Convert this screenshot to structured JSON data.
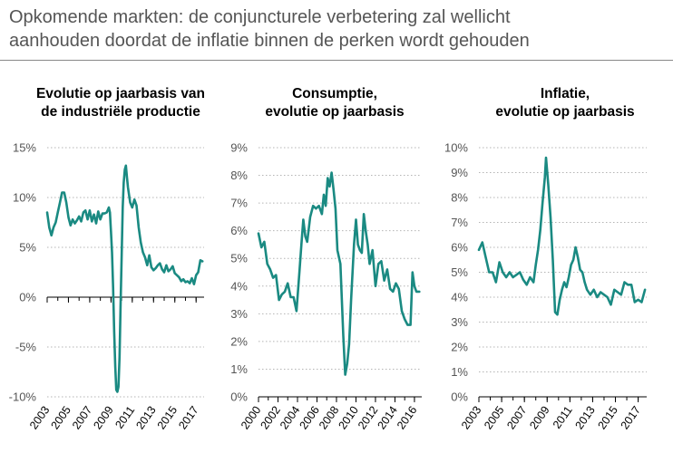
{
  "title_lines": [
    "Opkomende markten: de conjuncturele verbetering zal wellicht",
    "aanhouden doordat de inflatie binnen de perken wordt gehouden"
  ],
  "colors": {
    "line": "#1a8a82",
    "grid": "#b4b4b4",
    "zero": "#000000",
    "rule": "#888888"
  },
  "chart_data": [
    {
      "type": "line",
      "title": "Evolutie op jaarbasis van de industriële productie",
      "title_lines": [
        "Evolutie op jaarbasis van",
        "de industriële productie"
      ],
      "y_ticks": [
        "15%",
        "10%",
        "5%",
        "0%",
        "-5%",
        "-10%"
      ],
      "ylim": [
        -10,
        15
      ],
      "x_ticks": [
        "2003",
        "2005",
        "2007",
        "2009",
        "2011",
        "2013",
        "2015",
        "2017"
      ],
      "xlim": [
        2003,
        2017.75
      ],
      "grid": true,
      "zero_line": true,
      "series": [
        {
          "x": [
            2003.0,
            2003.2,
            2003.4,
            2003.6,
            2003.8,
            2004.0,
            2004.2,
            2004.4,
            2004.6,
            2004.8,
            2005.0,
            2005.2,
            2005.4,
            2005.6,
            2005.8,
            2006.0,
            2006.2,
            2006.4,
            2006.6,
            2006.8,
            2007.0,
            2007.2,
            2007.4,
            2007.6,
            2007.8,
            2008.0,
            2008.2,
            2008.4,
            2008.6,
            2008.8,
            2008.9,
            2009.0,
            2009.1,
            2009.2,
            2009.3,
            2009.4,
            2009.5,
            2009.6,
            2009.7,
            2009.8,
            2009.9,
            2010.0,
            2010.1,
            2010.2,
            2010.3,
            2010.4,
            2010.5,
            2010.6,
            2010.8,
            2011.0,
            2011.2,
            2011.4,
            2011.6,
            2011.8,
            2012.0,
            2012.2,
            2012.4,
            2012.6,
            2012.8,
            2013.0,
            2013.2,
            2013.4,
            2013.6,
            2013.8,
            2014.0,
            2014.2,
            2014.4,
            2014.6,
            2014.8,
            2015.0,
            2015.2,
            2015.4,
            2015.6,
            2015.8,
            2016.0,
            2016.2,
            2016.4,
            2016.6,
            2016.8,
            2017.0,
            2017.2,
            2017.4,
            2017.6
          ],
          "y": [
            8.5,
            7.0,
            6.2,
            7.0,
            7.5,
            8.5,
            9.5,
            10.5,
            10.5,
            9.5,
            8.0,
            7.2,
            7.8,
            7.4,
            7.7,
            8.1,
            7.6,
            8.5,
            8.7,
            7.8,
            8.7,
            7.6,
            8.3,
            7.4,
            8.6,
            7.8,
            8.4,
            8.4,
            8.5,
            9.0,
            8.5,
            6.5,
            4.5,
            1.0,
            -3.5,
            -7.0,
            -9.3,
            -9.5,
            -9.0,
            -6.0,
            -1.0,
            4.0,
            9.0,
            11.5,
            12.8,
            13.2,
            12.0,
            11.0,
            9.5,
            9.0,
            9.8,
            9.2,
            7.0,
            5.5,
            4.5,
            4.0,
            3.2,
            4.2,
            3.0,
            2.7,
            2.9,
            3.2,
            3.4,
            2.8,
            2.5,
            3.2,
            2.6,
            2.8,
            3.1,
            2.4,
            2.2,
            2.0,
            1.6,
            1.8,
            1.5,
            1.6,
            1.4,
            1.9,
            1.3,
            2.2,
            2.5,
            3.7,
            3.6
          ]
        }
      ]
    },
    {
      "type": "line",
      "title": "Consumptie, evolutie op jaarbasis",
      "title_lines": [
        "Consumptie,",
        "evolutie op jaarbasis"
      ],
      "y_ticks": [
        "9%",
        "8%",
        "7%",
        "6%",
        "5%",
        "4%",
        "3%",
        "2%",
        "1%",
        "0%"
      ],
      "ylim": [
        0,
        9
      ],
      "x_ticks": [
        "2000",
        "2002",
        "2004",
        "2006",
        "2008",
        "2010",
        "2012",
        "2014",
        "2016"
      ],
      "xlim": [
        2000,
        2016.75
      ],
      "grid": true,
      "zero_line": false,
      "series": [
        {
          "x": [
            2000.0,
            2000.3,
            2000.6,
            2000.9,
            2001.2,
            2001.5,
            2001.8,
            2002.1,
            2002.4,
            2002.7,
            2003.0,
            2003.3,
            2003.6,
            2003.9,
            2004.2,
            2004.4,
            2004.6,
            2004.8,
            2005.0,
            2005.3,
            2005.6,
            2005.9,
            2006.2,
            2006.5,
            2006.7,
            2006.9,
            2007.1,
            2007.3,
            2007.5,
            2007.7,
            2007.9,
            2008.1,
            2008.4,
            2008.7,
            2008.9,
            2009.1,
            2009.3,
            2009.5,
            2009.8,
            2010.0,
            2010.2,
            2010.4,
            2010.6,
            2010.8,
            2011.0,
            2011.2,
            2011.4,
            2011.7,
            2012.0,
            2012.3,
            2012.6,
            2012.9,
            2013.2,
            2013.5,
            2013.8,
            2014.1,
            2014.4,
            2014.7,
            2015.0,
            2015.3,
            2015.6,
            2015.8,
            2016.0,
            2016.2,
            2016.5
          ],
          "y": [
            5.9,
            5.4,
            5.6,
            4.8,
            4.6,
            4.3,
            4.4,
            3.5,
            3.7,
            3.8,
            4.1,
            3.6,
            3.6,
            3.1,
            4.5,
            5.5,
            6.4,
            5.8,
            5.6,
            6.5,
            6.9,
            6.8,
            6.9,
            6.6,
            7.3,
            6.9,
            7.9,
            7.6,
            8.1,
            7.5,
            6.8,
            5.3,
            4.8,
            2.2,
            0.8,
            1.2,
            1.9,
            3.5,
            5.5,
            6.4,
            5.5,
            5.3,
            5.2,
            6.6,
            6.0,
            5.5,
            4.8,
            5.3,
            4.0,
            4.8,
            4.9,
            4.2,
            4.6,
            3.9,
            3.8,
            4.1,
            3.9,
            3.1,
            2.8,
            2.6,
            2.6,
            4.5,
            4.0,
            3.8,
            3.8
          ]
        }
      ]
    },
    {
      "type": "line",
      "title": "Inflatie, evolutie op jaarbasis",
      "title_lines": [
        "Inflatie,",
        "evolutie op jaarbasis"
      ],
      "y_ticks": [
        "10%",
        "9%",
        "8%",
        "7%",
        "6%",
        "5%",
        "4%",
        "3%",
        "2%",
        "1%",
        "0%"
      ],
      "ylim": [
        0,
        10
      ],
      "x_ticks": [
        "2003",
        "2005",
        "2007",
        "2009",
        "2011",
        "2013",
        "2015",
        "2017"
      ],
      "xlim": [
        2003,
        2017.75
      ],
      "grid": true,
      "zero_line": false,
      "series": [
        {
          "x": [
            2003.0,
            2003.3,
            2003.6,
            2003.9,
            2004.2,
            2004.5,
            2004.8,
            2005.1,
            2005.4,
            2005.7,
            2006.0,
            2006.3,
            2006.6,
            2006.9,
            2007.2,
            2007.5,
            2007.8,
            2008.0,
            2008.2,
            2008.4,
            2008.6,
            2008.8,
            2008.9,
            2009.1,
            2009.3,
            2009.5,
            2009.7,
            2009.9,
            2010.1,
            2010.3,
            2010.5,
            2010.7,
            2010.9,
            2011.1,
            2011.3,
            2011.5,
            2011.7,
            2011.9,
            2012.1,
            2012.3,
            2012.5,
            2012.8,
            2013.1,
            2013.4,
            2013.7,
            2014.0,
            2014.3,
            2014.6,
            2014.9,
            2015.2,
            2015.5,
            2015.8,
            2016.1,
            2016.4,
            2016.7,
            2017.0,
            2017.3,
            2017.6
          ],
          "y": [
            5.9,
            6.2,
            5.6,
            5.0,
            5.0,
            4.6,
            5.4,
            5.0,
            4.8,
            5.0,
            4.8,
            4.9,
            5.0,
            4.7,
            4.5,
            4.8,
            4.6,
            5.3,
            5.9,
            6.7,
            7.8,
            8.8,
            9.6,
            8.5,
            7.2,
            5.5,
            3.4,
            3.3,
            3.9,
            4.3,
            4.6,
            4.4,
            4.8,
            5.3,
            5.5,
            6.0,
            5.6,
            5.1,
            5.0,
            4.6,
            4.3,
            4.1,
            4.3,
            4.0,
            4.2,
            4.1,
            4.0,
            3.7,
            4.3,
            4.2,
            4.1,
            4.6,
            4.5,
            4.5,
            3.8,
            3.9,
            3.8,
            4.3
          ]
        }
      ]
    }
  ]
}
